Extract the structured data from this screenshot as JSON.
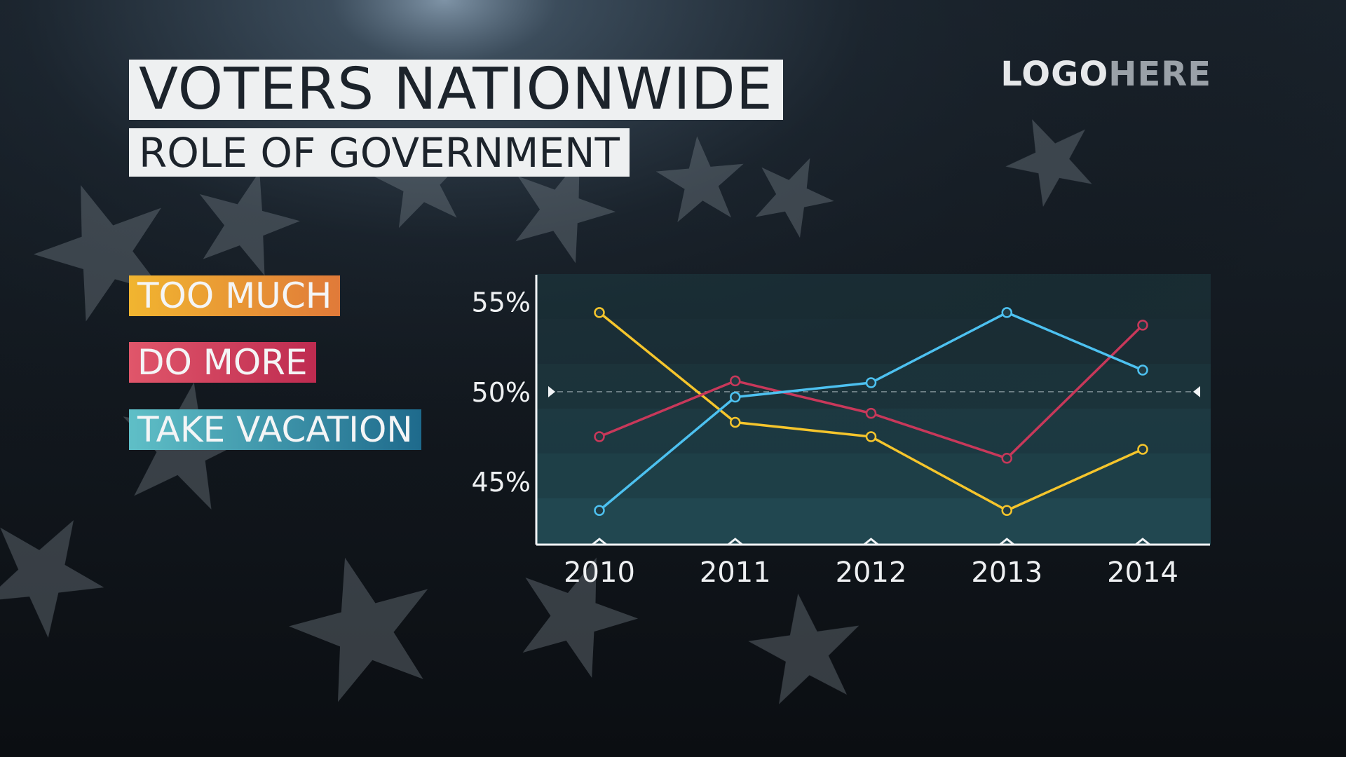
{
  "header": {
    "title": "VOTERS NATIONWIDE",
    "subtitle": "ROLE OF GOVERNMENT"
  },
  "logo": {
    "part1": "LOGO",
    "part2": "HERE"
  },
  "legend": [
    {
      "label": "TOO MUCH",
      "color": "#f5c52c"
    },
    {
      "label": "DO MORE",
      "color": "#c8385a"
    },
    {
      "label": "TAKE VACATION",
      "color": "#4dc1f0"
    }
  ],
  "chart_data": {
    "type": "line",
    "title": "ROLE OF GOVERNMENT",
    "x": [
      "2010",
      "2011",
      "2012",
      "2013",
      "2014"
    ],
    "y_ticks": [
      "55%",
      "50%",
      "45%"
    ],
    "y_tick_values": [
      55,
      50,
      45
    ],
    "ylim": [
      41.5,
      56.5
    ],
    "reference_line": 50,
    "grid": false,
    "legend_position": "left",
    "series": [
      {
        "name": "TOO MUCH",
        "color": "#f5c52c",
        "values": [
          54.4,
          48.3,
          47.5,
          43.4,
          46.8
        ]
      },
      {
        "name": "DO MORE",
        "color": "#c8385a",
        "values": [
          47.5,
          50.6,
          48.8,
          46.3,
          53.7
        ]
      },
      {
        "name": "TAKE VACATION",
        "color": "#4dc1f0",
        "values": [
          43.4,
          49.7,
          50.5,
          54.4,
          51.2
        ]
      }
    ]
  }
}
